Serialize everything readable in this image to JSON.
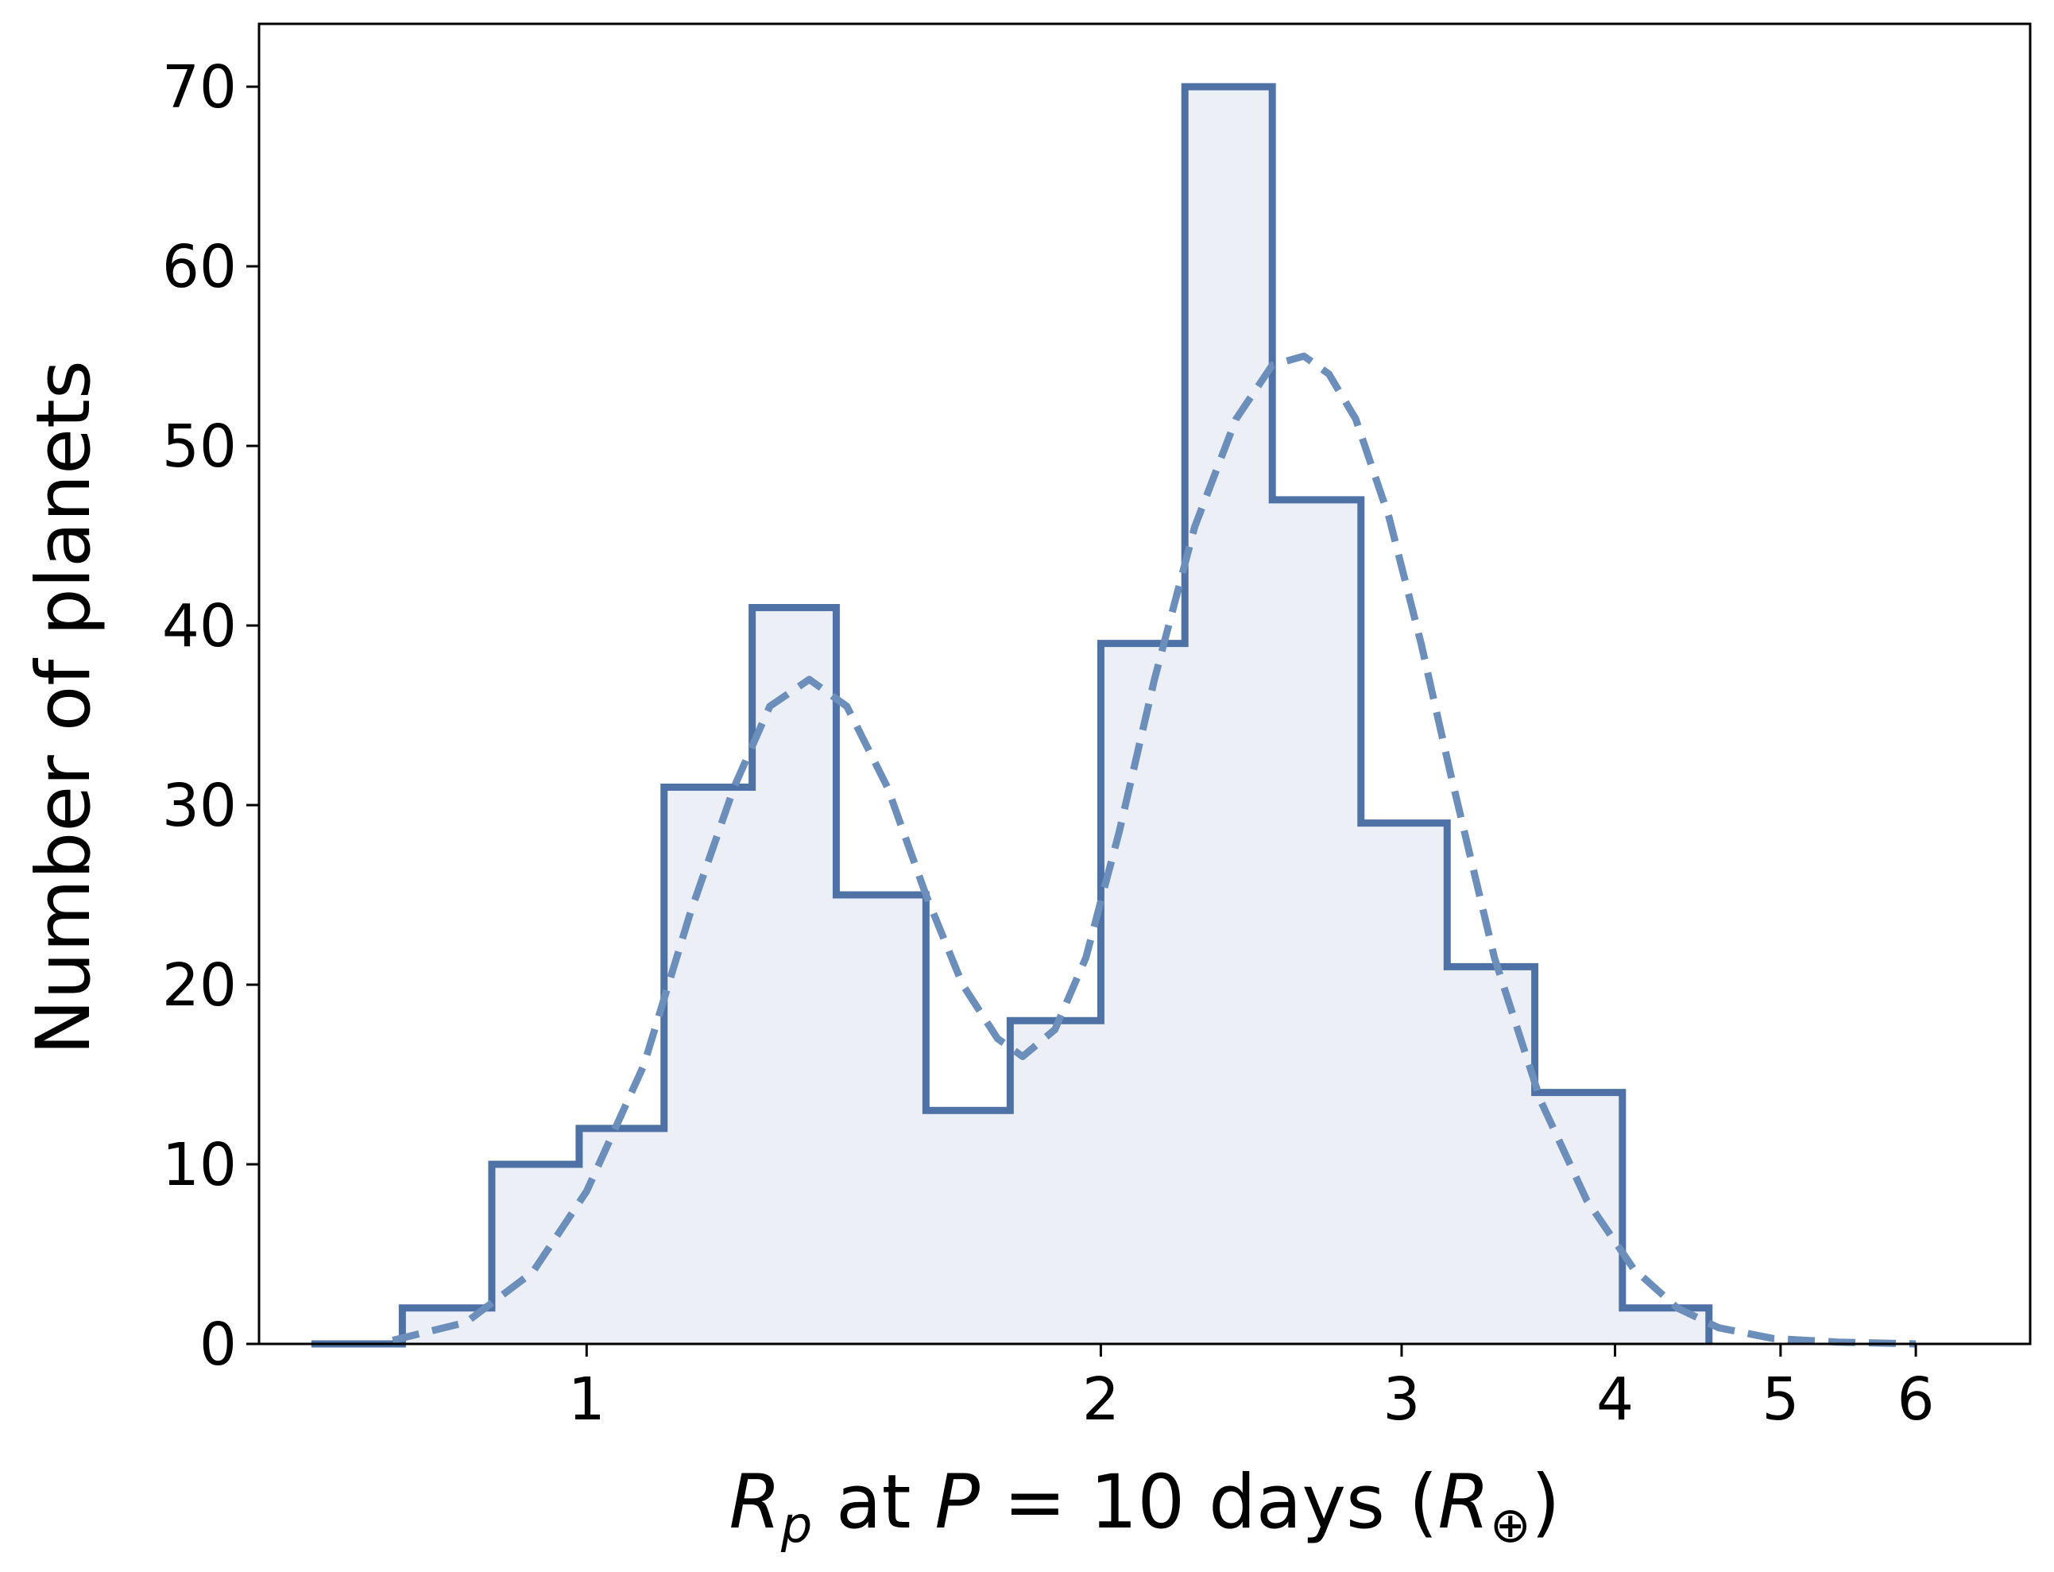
{
  "chart_data": {
    "type": "histogram",
    "xscale": "log",
    "xlabel": {
      "sym": "R",
      "sub": "p",
      "mid": " at ",
      "sym2": "P",
      "eq": " = 10 days (",
      "sym3": "R",
      "sub3": "⊕",
      "end": ")"
    },
    "ylabel": "Number of planets",
    "xlim": [
      0.643,
      7.0
    ],
    "ylim": [
      0,
      73.5
    ],
    "xticks": [
      1,
      2,
      3,
      4,
      5,
      6
    ],
    "xtick_labels": [
      "1",
      "2",
      "3",
      "4",
      "5",
      "6"
    ],
    "yticks": [
      0,
      10,
      20,
      30,
      40,
      50,
      60,
      70
    ],
    "ytick_labels": [
      "0",
      "10",
      "20",
      "30",
      "40",
      "50",
      "60",
      "70"
    ],
    "bin_edges": [
      0.69,
      0.78,
      0.88,
      0.99,
      1.11,
      1.25,
      1.4,
      1.58,
      1.77,
      2.0,
      2.24,
      2.52,
      2.84,
      3.19,
      3.59,
      4.04,
      4.54
    ],
    "counts": [
      0,
      2,
      10,
      12,
      31,
      41,
      25,
      13,
      18,
      39,
      70,
      47,
      29,
      21,
      14,
      2
    ],
    "fit_curve": {
      "style": "dashed",
      "x": [
        0.77,
        0.85,
        0.93,
        1.0,
        1.08,
        1.15,
        1.22,
        1.28,
        1.35,
        1.42,
        1.5,
        1.58,
        1.66,
        1.74,
        1.8,
        1.88,
        1.96,
        2.05,
        2.15,
        2.27,
        2.4,
        2.52,
        2.63,
        2.72,
        2.82,
        2.95,
        3.08,
        3.2,
        3.4,
        3.62,
        3.85,
        4.1,
        4.35,
        4.6,
        4.95,
        5.4,
        6.0
      ],
      "y": [
        0.2,
        1.2,
        4.0,
        8.5,
        15.5,
        24.0,
        31.0,
        35.5,
        37.0,
        35.5,
        31.0,
        25.0,
        20.0,
        17.0,
        16.0,
        17.5,
        21.5,
        28.5,
        37.0,
        45.5,
        51.5,
        54.5,
        55.0,
        54.0,
        51.5,
        46.0,
        39.0,
        32.0,
        21.5,
        13.5,
        8.0,
        4.2,
        2.0,
        0.9,
        0.3,
        0.1,
        0.0
      ]
    },
    "colors": {
      "step": "#4E72A6",
      "fill": "#ECEFF5",
      "fit": "#6C8EBA",
      "frame": "#000000"
    },
    "grid": false,
    "legend": "none"
  }
}
